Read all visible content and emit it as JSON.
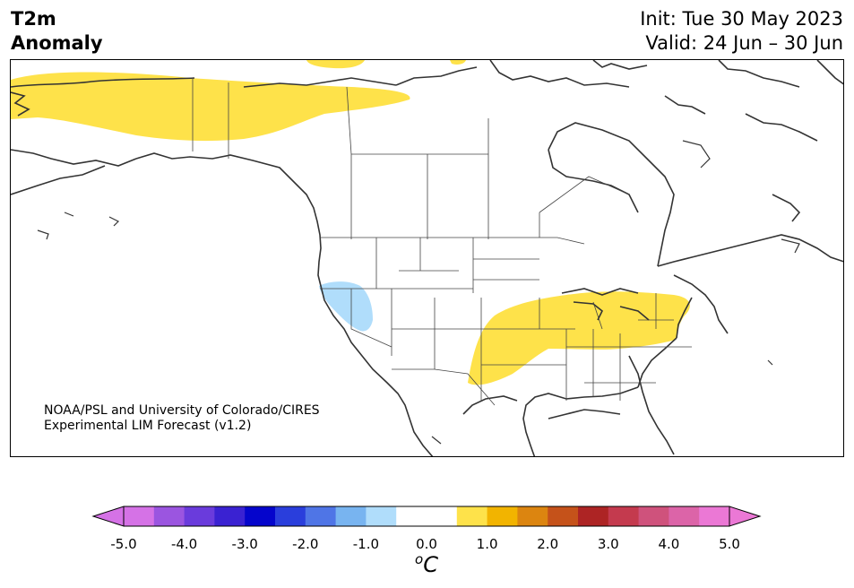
{
  "title": {
    "variable": "T2m",
    "subtitle": "Anomaly",
    "init": "Init: Tue 30 May 2023",
    "valid": "Valid: 24 Jun – 30 Jun"
  },
  "credit": {
    "line1": "NOAA/PSL and University of Colorado/CIRES",
    "line2": "Experimental LIM Forecast (v1.2)"
  },
  "colorbar": {
    "unit_base": "C",
    "unit_sup": "o",
    "ticks": [
      "-5.0",
      "-4.0",
      "-3.0",
      "-2.0",
      "-1.0",
      "0.0",
      "1.0",
      "2.0",
      "3.0",
      "4.0",
      "5.0"
    ],
    "colors": [
      "#d572e6",
      "#9b55e0",
      "#6a3bdc",
      "#3a22d2",
      "#0505cc",
      "#2a3edc",
      "#4f75e6",
      "#78b4f0",
      "#b0ddfb",
      "#ffffff",
      "#ffffff",
      "#fee24a",
      "#f2b400",
      "#dc8510",
      "#c5521a",
      "#ad2424",
      "#c43a4e",
      "#cf527c",
      "#dc64a8",
      "#eb78d5"
    ],
    "under_color": "#d572e6",
    "over_color": "#eb78d5"
  },
  "map": {
    "region": "North America",
    "anomaly_regions": [
      {
        "name": "northern-canada-warm",
        "level": "0.5 to 1.0",
        "color": "#fee24a"
      },
      {
        "name": "central-east-us-warm",
        "level": "0.5 to 1.0",
        "color": "#fee24a"
      },
      {
        "name": "great-basin-cool",
        "level": "-1.0 to -0.5",
        "color": "#b0ddfb"
      }
    ]
  }
}
